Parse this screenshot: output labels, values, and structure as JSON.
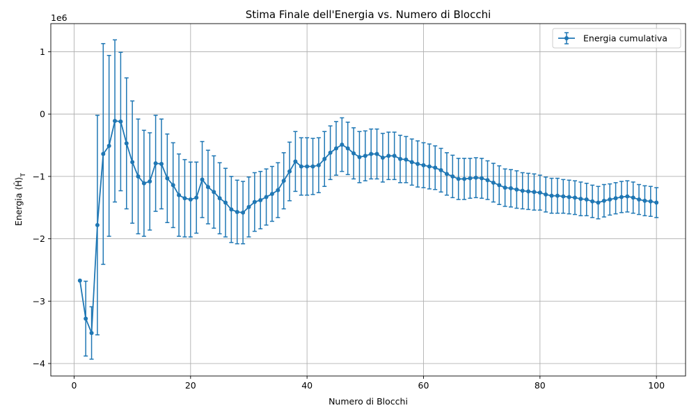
{
  "chart_data": {
    "type": "line",
    "title": "Stima Finale dell'Energia vs. Numero di Blocchi",
    "xlabel": "Numero di Blocchi",
    "ylabel": "Energia ⟨Ĥ⟩",
    "ylabel_subscript": "T",
    "y_scale_label": "1e6",
    "xlim": [
      -4,
      105
    ],
    "ylim": [
      -4.2,
      1.45
    ],
    "xticks": [
      0,
      20,
      40,
      60,
      80,
      100
    ],
    "yticks": [
      1,
      0,
      -1,
      -2,
      -3,
      -4
    ],
    "ytick_labels": [
      "1",
      "0",
      "−1",
      "−2",
      "−3",
      "−4"
    ],
    "grid": true,
    "legend": "top-right",
    "color": "#1f77b4",
    "series": [
      {
        "name": "Energia cumulativa",
        "x": [
          1,
          2,
          3,
          4,
          5,
          6,
          7,
          8,
          9,
          10,
          11,
          12,
          13,
          14,
          15,
          16,
          17,
          18,
          19,
          20,
          21,
          22,
          23,
          24,
          25,
          26,
          27,
          28,
          29,
          30,
          31,
          32,
          33,
          34,
          35,
          36,
          37,
          38,
          39,
          40,
          41,
          42,
          43,
          44,
          45,
          46,
          47,
          48,
          49,
          50,
          51,
          52,
          53,
          54,
          55,
          56,
          57,
          58,
          59,
          60,
          61,
          62,
          63,
          64,
          65,
          66,
          67,
          68,
          69,
          70,
          71,
          72,
          73,
          74,
          75,
          76,
          77,
          78,
          79,
          80,
          81,
          82,
          83,
          84,
          85,
          86,
          87,
          88,
          89,
          90,
          91,
          92,
          93,
          94,
          95,
          96,
          97,
          98,
          99,
          100
        ],
        "y": [
          -2.67,
          -3.28,
          -3.51,
          -1.78,
          -0.64,
          -0.51,
          -0.11,
          -0.12,
          -0.47,
          -0.77,
          -1.0,
          -1.11,
          -1.08,
          -0.79,
          -0.8,
          -1.03,
          -1.14,
          -1.3,
          -1.35,
          -1.37,
          -1.34,
          -1.05,
          -1.17,
          -1.25,
          -1.35,
          -1.42,
          -1.53,
          -1.57,
          -1.58,
          -1.49,
          -1.41,
          -1.38,
          -1.33,
          -1.28,
          -1.22,
          -1.07,
          -0.92,
          -0.76,
          -0.84,
          -0.84,
          -0.84,
          -0.82,
          -0.72,
          -0.62,
          -0.55,
          -0.49,
          -0.55,
          -0.63,
          -0.69,
          -0.67,
          -0.64,
          -0.64,
          -0.7,
          -0.67,
          -0.67,
          -0.72,
          -0.73,
          -0.77,
          -0.8,
          -0.82,
          -0.84,
          -0.86,
          -0.9,
          -0.96,
          -1.0,
          -1.04,
          -1.04,
          -1.03,
          -1.02,
          -1.03,
          -1.06,
          -1.1,
          -1.14,
          -1.18,
          -1.19,
          -1.21,
          -1.23,
          -1.24,
          -1.25,
          -1.26,
          -1.29,
          -1.31,
          -1.31,
          -1.32,
          -1.33,
          -1.34,
          -1.36,
          -1.37,
          -1.4,
          -1.42,
          -1.39,
          -1.37,
          -1.35,
          -1.33,
          -1.32,
          -1.34,
          -1.37,
          -1.39,
          -1.4,
          -1.42
        ],
        "err": [
          0,
          0.6,
          0.42,
          1.76,
          1.77,
          1.45,
          1.3,
          1.11,
          1.05,
          0.98,
          0.92,
          0.85,
          0.78,
          0.77,
          0.72,
          0.71,
          0.68,
          0.66,
          0.62,
          0.6,
          0.57,
          0.61,
          0.59,
          0.58,
          0.57,
          0.55,
          0.53,
          0.51,
          0.5,
          0.48,
          0.47,
          0.46,
          0.45,
          0.44,
          0.44,
          0.45,
          0.47,
          0.48,
          0.46,
          0.46,
          0.45,
          0.44,
          0.44,
          0.43,
          0.43,
          0.43,
          0.42,
          0.41,
          0.41,
          0.4,
          0.4,
          0.4,
          0.39,
          0.38,
          0.38,
          0.38,
          0.37,
          0.37,
          0.37,
          0.36,
          0.36,
          0.35,
          0.35,
          0.34,
          0.34,
          0.33,
          0.33,
          0.32,
          0.32,
          0.32,
          0.31,
          0.31,
          0.31,
          0.3,
          0.3,
          0.3,
          0.29,
          0.29,
          0.29,
          0.28,
          0.28,
          0.28,
          0.28,
          0.27,
          0.27,
          0.27,
          0.27,
          0.26,
          0.26,
          0.26,
          0.26,
          0.25,
          0.25,
          0.25,
          0.25,
          0.25,
          0.24,
          0.24,
          0.24,
          0.24
        ]
      }
    ]
  }
}
